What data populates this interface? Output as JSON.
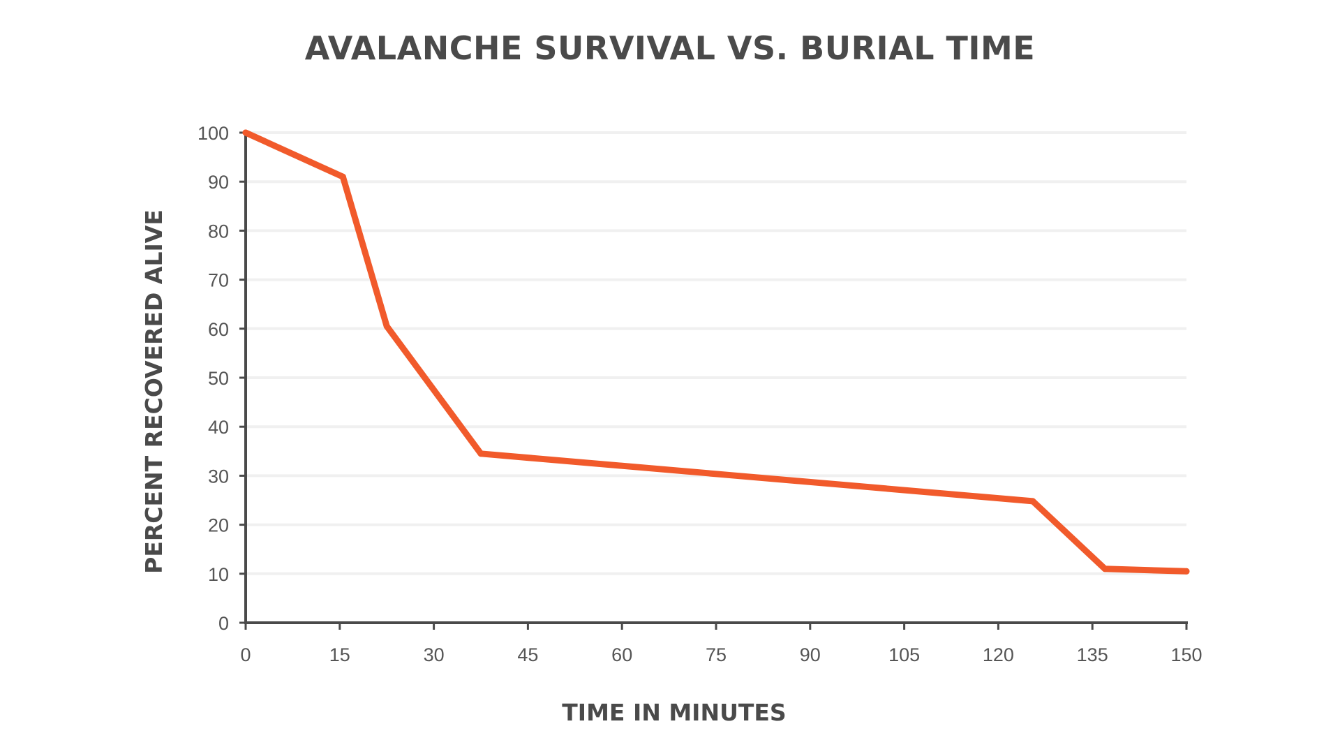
{
  "chart_data": {
    "type": "line",
    "title": "AVALANCHE SURVIVAL VS. BURIAL TIME",
    "xlabel": "TIME IN MINUTES",
    "ylabel": "PERCENT RECOVERED ALIVE",
    "xlim": [
      0,
      150
    ],
    "ylim": [
      0,
      100
    ],
    "x_ticks": [
      0,
      15,
      30,
      45,
      60,
      75,
      90,
      105,
      120,
      135,
      150
    ],
    "y_ticks": [
      0,
      10,
      20,
      30,
      40,
      50,
      60,
      70,
      80,
      90,
      100
    ],
    "grid": true,
    "legend": "none",
    "series": [
      {
        "color": "#f15a2b",
        "x": [
          0,
          15.5,
          22.5,
          37.5,
          125.5,
          137,
          150
        ],
        "y": [
          100,
          91,
          60.5,
          34.5,
          24.8,
          11,
          10.5
        ]
      }
    ]
  },
  "colors": {
    "axis": "#4a4a4a",
    "grid": "#f0f0f0",
    "text": "#555555"
  }
}
